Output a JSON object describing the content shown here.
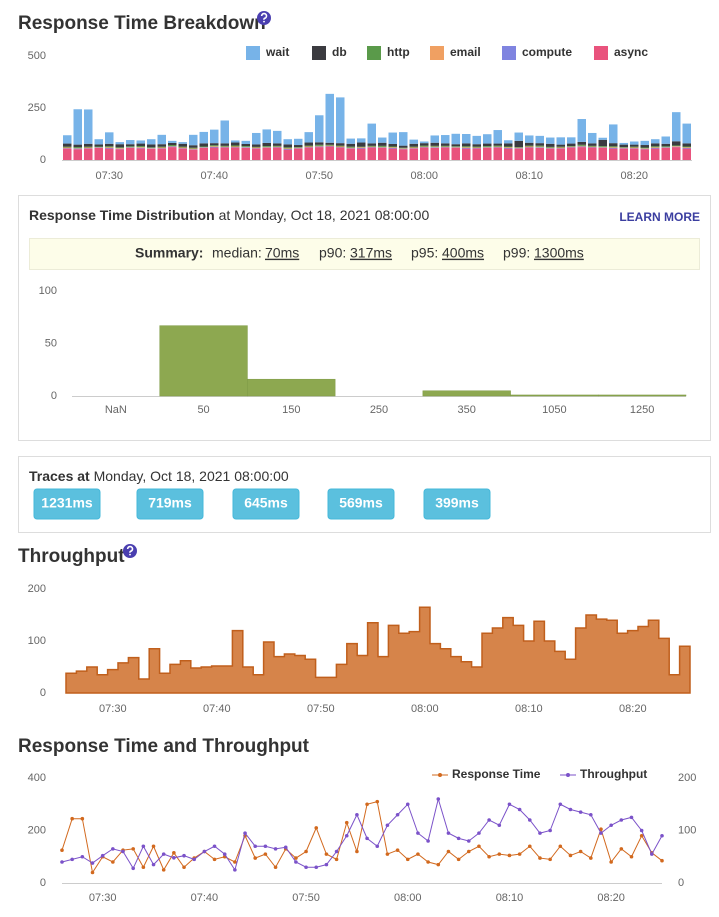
{
  "chart_data": [
    {
      "type": "stacked_bar",
      "title": "Response Time Breakdown",
      "categories": [
        null,
        null,
        null,
        null,
        "07:30",
        null,
        null,
        null,
        null,
        null,
        null,
        null,
        null,
        null,
        "07:40",
        null,
        null,
        null,
        null,
        null,
        null,
        null,
        null,
        null,
        "07:50",
        null,
        null,
        null,
        null,
        null,
        null,
        null,
        null,
        null,
        "08:00",
        null,
        null,
        null,
        null,
        null,
        null,
        null,
        null,
        null,
        "08:10",
        null,
        null,
        null,
        null,
        null,
        null,
        null,
        null,
        null,
        "08:20",
        null,
        null,
        null,
        null,
        null
      ],
      "ylim": [
        0,
        500
      ],
      "yticks": [
        0,
        250,
        500
      ],
      "series": [
        {
          "name": "async",
          "color": "#e9537d",
          "values": [
            55,
            52,
            55,
            58,
            55,
            52,
            58,
            56,
            54,
            55,
            62,
            55,
            50,
            58,
            60,
            60,
            60,
            58,
            55,
            58,
            60,
            50,
            55,
            60,
            62,
            65,
            60,
            55,
            55,
            60,
            58,
            55,
            52,
            55,
            60,
            58,
            60,
            58,
            55,
            56,
            58,
            60,
            55,
            55,
            60,
            58,
            55,
            55,
            60,
            62,
            60,
            58,
            55,
            55,
            55,
            52,
            55,
            58,
            62,
            55
          ]
        },
        {
          "name": "compute",
          "color": "#7f84e0",
          "values": [
            2,
            3,
            2,
            2,
            3,
            2,
            2,
            3,
            2,
            2,
            3,
            2,
            2,
            2,
            3,
            2,
            2,
            3,
            2,
            2,
            2,
            3,
            2,
            2,
            3,
            2,
            2,
            2,
            3,
            2,
            2,
            3,
            2,
            2,
            2,
            3,
            2,
            2,
            3,
            2,
            2,
            2,
            3,
            2,
            2,
            3,
            2,
            2,
            2,
            3,
            2,
            2,
            3,
            2,
            2,
            2,
            3,
            2,
            2,
            3
          ]
        },
        {
          "name": "email",
          "color": "#f0a062",
          "values": [
            3,
            2,
            3,
            2,
            3,
            3,
            2,
            3,
            2,
            3,
            2,
            3,
            3,
            2,
            3,
            2,
            3,
            2,
            3,
            3,
            2,
            3,
            2,
            3,
            3,
            2,
            3,
            2,
            3,
            2,
            3,
            3,
            2,
            3,
            2,
            3,
            2,
            3,
            3,
            2,
            3,
            2,
            3,
            2,
            3,
            3,
            2,
            3,
            2,
            3,
            2,
            3,
            3,
            2,
            3,
            2,
            3,
            2,
            3,
            3
          ]
        },
        {
          "name": "http",
          "color": "#5a9a4a",
          "values": [
            4,
            5,
            4,
            3,
            5,
            4,
            4,
            5,
            3,
            4,
            5,
            4,
            4,
            3,
            5,
            4,
            5,
            4,
            3,
            4,
            4,
            5,
            3,
            4,
            5,
            4,
            4,
            5,
            3,
            4,
            5,
            4,
            3,
            4,
            5,
            4,
            4,
            3,
            5,
            4,
            4,
            5,
            4,
            3,
            4,
            5,
            4,
            4,
            3,
            5,
            4,
            4,
            5,
            3,
            4,
            4,
            5,
            4,
            3,
            4
          ]
        },
        {
          "name": "db",
          "color": "#3b3b40",
          "values": [
            15,
            12,
            14,
            10,
            12,
            15,
            10,
            12,
            14,
            12,
            10,
            14,
            12,
            15,
            10,
            12,
            14,
            10,
            12,
            15,
            12,
            14,
            10,
            15,
            12,
            10,
            12,
            14,
            20,
            12,
            15,
            12,
            10,
            14,
            12,
            15,
            12,
            10,
            14,
            12,
            12,
            10,
            15,
            30,
            14,
            12,
            15,
            10,
            12,
            14,
            12,
            30,
            15,
            12,
            10,
            12,
            14,
            12,
            20,
            15
          ]
        },
        {
          "name": "wait",
          "color": "#77b3e8",
          "values": [
            40,
            170,
            165,
            25,
            55,
            10,
            20,
            15,
            25,
            45,
            10,
            8,
            50,
            55,
            65,
            110,
            10,
            15,
            55,
            65,
            60,
            25,
            30,
            50,
            130,
            235,
            220,
            25,
            20,
            95,
            25,
            55,
            65,
            20,
            8,
            35,
            40,
            50,
            45,
            40,
            45,
            65,
            15,
            40,
            35,
            35,
            30,
            35,
            30,
            110,
            50,
            10,
            90,
            8,
            15,
            20,
            20,
            35,
            140,
            95
          ]
        }
      ]
    },
    {
      "type": "bar",
      "title": "Response Time Distribution",
      "subtitle": "at Monday, Oct 18, 2021 08:00:00",
      "categories": [
        "NaN",
        "50",
        "150",
        "250",
        "350",
        "1050",
        "1250"
      ],
      "values": [
        0,
        67,
        16,
        0,
        5,
        1,
        1
      ],
      "color": "#8da850",
      "ylim": [
        0,
        100
      ],
      "yticks": [
        0,
        50,
        100
      ]
    },
    {
      "type": "step_area",
      "title": "Throughput",
      "color": "#d6844a",
      "categories": [
        null,
        null,
        null,
        null,
        "07:30",
        null,
        null,
        null,
        null,
        null,
        null,
        null,
        null,
        null,
        "07:40",
        null,
        null,
        null,
        null,
        null,
        null,
        null,
        null,
        null,
        "07:50",
        null,
        null,
        null,
        null,
        null,
        null,
        null,
        null,
        null,
        "08:00",
        null,
        null,
        null,
        null,
        null,
        null,
        null,
        null,
        null,
        "08:10",
        null,
        null,
        null,
        null,
        null,
        null,
        null,
        null,
        null,
        "08:20",
        null,
        null,
        null,
        null,
        null
      ],
      "values": [
        38,
        42,
        50,
        35,
        45,
        58,
        68,
        27,
        85,
        38,
        55,
        62,
        48,
        50,
        52,
        52,
        120,
        50,
        35,
        98,
        70,
        75,
        72,
        65,
        30,
        30,
        55,
        95,
        72,
        135,
        70,
        130,
        115,
        118,
        165,
        95,
        85,
        70,
        60,
        50,
        115,
        125,
        145,
        130,
        100,
        138,
        100,
        80,
        65,
        125,
        150,
        142,
        140,
        115,
        120,
        128,
        140,
        105,
        35,
        90
      ],
      "ylim": [
        0,
        200
      ],
      "yticks": [
        0,
        100,
        200
      ]
    },
    {
      "type": "line",
      "title": "Response Time and Throughput",
      "categories": [
        null,
        null,
        null,
        null,
        "07:30",
        null,
        null,
        null,
        null,
        null,
        null,
        null,
        null,
        null,
        "07:40",
        null,
        null,
        null,
        null,
        null,
        null,
        null,
        null,
        null,
        "07:50",
        null,
        null,
        null,
        null,
        null,
        null,
        null,
        null,
        null,
        "08:00",
        null,
        null,
        null,
        null,
        null,
        null,
        null,
        null,
        null,
        "08:10",
        null,
        null,
        null,
        null,
        null,
        null,
        null,
        null,
        null,
        "08:20",
        null,
        null,
        null,
        null,
        null
      ],
      "ylim": [
        0,
        400
      ],
      "yticks": [
        0,
        200,
        400
      ],
      "y2lim": [
        0,
        200
      ],
      "y2ticks": [
        0,
        100,
        200
      ],
      "series": [
        {
          "name": "Response Time",
          "color": "#d2691e",
          "values": [
            125,
            245,
            245,
            40,
            100,
            80,
            125,
            130,
            60,
            140,
            50,
            115,
            60,
            95,
            120,
            90,
            100,
            80,
            180,
            95,
            110,
            60,
            130,
            95,
            120,
            210,
            110,
            90,
            230,
            120,
            300,
            310,
            110,
            125,
            90,
            110,
            80,
            70,
            120,
            90,
            120,
            140,
            100,
            110,
            105,
            110,
            140,
            95,
            90,
            140,
            105,
            120,
            95,
            205,
            80,
            130,
            100,
            180,
            115,
            85
          ]
        },
        {
          "name": "Throughput",
          "color": "#7b52c9",
          "axis": "y2",
          "values": [
            40,
            45,
            50,
            38,
            52,
            65,
            60,
            28,
            70,
            35,
            55,
            48,
            52,
            45,
            60,
            70,
            55,
            25,
            95,
            70,
            70,
            65,
            68,
            40,
            30,
            30,
            35,
            60,
            90,
            130,
            85,
            70,
            110,
            130,
            150,
            95,
            80,
            160,
            95,
            85,
            80,
            95,
            120,
            110,
            150,
            140,
            120,
            95,
            100,
            150,
            140,
            135,
            130,
            95,
            110,
            120,
            125,
            100,
            55,
            90
          ]
        }
      ]
    }
  ],
  "distribution_panel": {
    "link": "LEARN MORE",
    "summary": {
      "label": "Summary:",
      "items": [
        {
          "name": "median:",
          "value": "70ms"
        },
        {
          "name": "p90:",
          "value": "317ms"
        },
        {
          "name": "p95:",
          "value": "400ms"
        },
        {
          "name": "p99:",
          "value": "1300ms"
        }
      ]
    }
  },
  "traces": {
    "title": "Traces at",
    "date": "Monday, Oct 18, 2021 08:00:00",
    "buttons": [
      "1231ms",
      "719ms",
      "645ms",
      "569ms",
      "399ms"
    ]
  }
}
